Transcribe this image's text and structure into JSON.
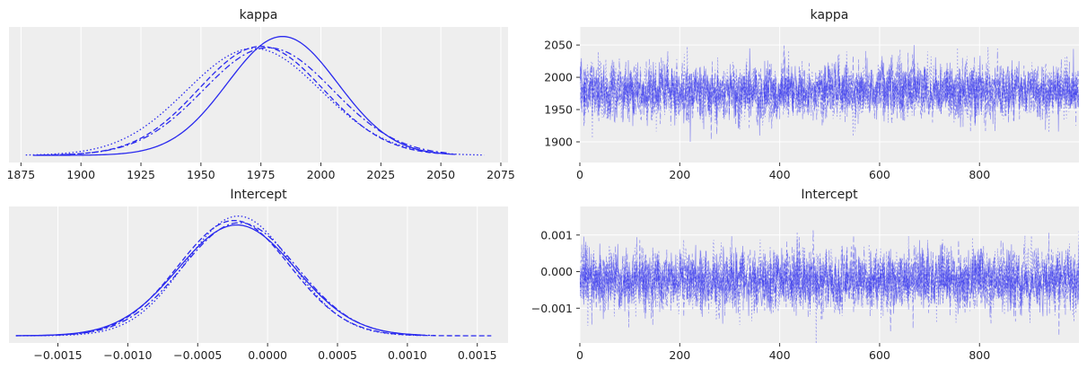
{
  "chart_data": [
    {
      "type": "line",
      "subtype": "kde",
      "title": "kappa",
      "xlabel": "",
      "ylabel": "",
      "x_ticks": [
        1875,
        1900,
        1925,
        1950,
        1975,
        2000,
        2025,
        2050,
        2075
      ],
      "xlim": [
        1870,
        2078
      ],
      "yaxis_ticks_visible": false,
      "grid": true,
      "color": "#2a2aee",
      "series": [
        {
          "linestyle": "solid",
          "mean": 1984,
          "sd": 23,
          "x_range": [
            1880,
            2056
          ],
          "peak": 0.018
        },
        {
          "linestyle": "dashed",
          "mean": 1975,
          "sd": 26,
          "x_range": [
            1885,
            2050
          ],
          "peak": 0.0165
        },
        {
          "linestyle": "dashdot",
          "mean": 1978,
          "sd": 27,
          "x_range": [
            1882,
            2053
          ],
          "peak": 0.0163
        },
        {
          "linestyle": "dotted",
          "mean": 1972,
          "sd": 28,
          "x_range": [
            1877,
            2068
          ],
          "peak": 0.0162
        }
      ]
    },
    {
      "type": "line",
      "subtype": "trace",
      "title": "kappa",
      "xlabel": "",
      "ylabel": "",
      "x_ticks": [
        0,
        200,
        400,
        600,
        800
      ],
      "y_ticks": [
        1900,
        1950,
        2000,
        2050
      ],
      "xlim": [
        0,
        999
      ],
      "ylim": [
        1868,
        2078
      ],
      "draws": 1000,
      "chains": 4,
      "center": 1978,
      "spread": 22,
      "grid": true,
      "color": "#2a2aee"
    },
    {
      "type": "line",
      "subtype": "kde",
      "title": "Intercept",
      "xlabel": "",
      "ylabel": "",
      "x_ticks": [
        -0.0015,
        -0.001,
        -0.0005,
        0.0,
        0.0005,
        0.001,
        0.0015
      ],
      "x_tick_labels": [
        "−0.0015",
        "−0.0010",
        "−0.0005",
        "0.0000",
        "0.0005",
        "0.0010",
        "0.0015"
      ],
      "xlim": [
        -0.00185,
        0.00172
      ],
      "yaxis_ticks_visible": false,
      "grid": true,
      "color": "#2a2aee",
      "series": [
        {
          "linestyle": "solid",
          "mean": -0.00022,
          "sd": 0.00042,
          "x_range": [
            -0.0018,
            0.0011
          ],
          "peak": 1000
        },
        {
          "linestyle": "dashed",
          "mean": -0.00024,
          "sd": 0.0004,
          "x_range": [
            -0.0018,
            0.0016
          ],
          "peak": 1040
        },
        {
          "linestyle": "dashdot",
          "mean": -0.0002,
          "sd": 0.00041,
          "x_range": [
            -0.0017,
            0.0012
          ],
          "peak": 1020
        },
        {
          "linestyle": "dotted",
          "mean": -0.00021,
          "sd": 0.00038,
          "x_range": [
            -0.0018,
            0.0011
          ],
          "peak": 1080
        }
      ]
    },
    {
      "type": "line",
      "subtype": "trace",
      "title": "Intercept",
      "xlabel": "",
      "ylabel": "",
      "x_ticks": [
        0,
        200,
        400,
        600,
        800
      ],
      "y_ticks": [
        -0.001,
        0.0,
        0.001
      ],
      "y_tick_labels": [
        "−0.001",
        "0.000",
        "0.001"
      ],
      "xlim": [
        0,
        999
      ],
      "ylim": [
        -0.00195,
        0.00178
      ],
      "draws": 1000,
      "chains": 4,
      "center": -0.00022,
      "spread": 0.00042,
      "grid": true,
      "color": "#2a2aee"
    }
  ]
}
